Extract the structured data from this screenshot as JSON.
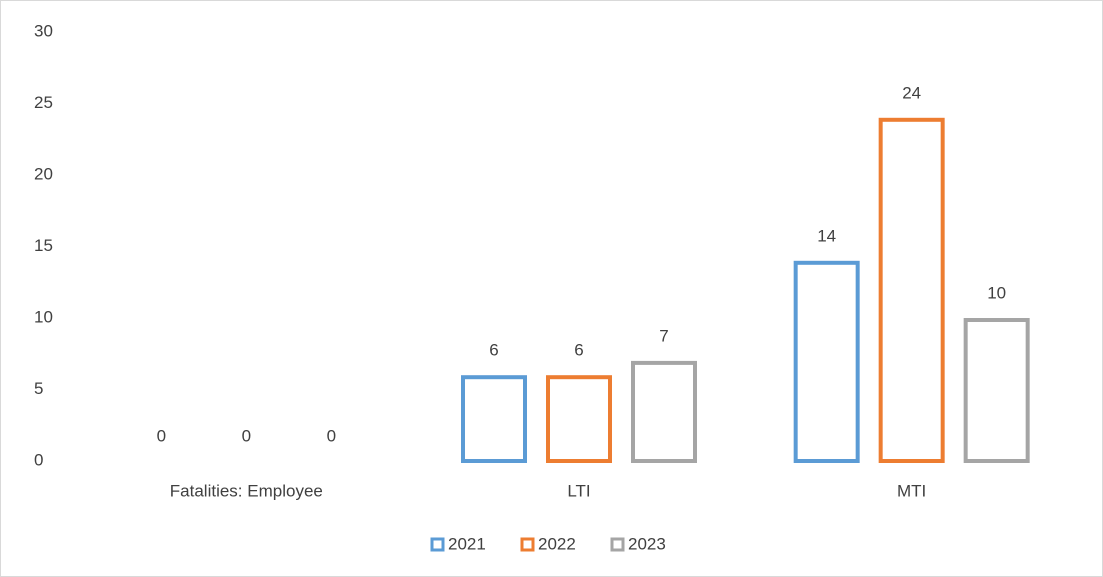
{
  "chart_data": {
    "type": "bar",
    "categories": [
      "Fatalities: Employee",
      "LTI",
      "MTI"
    ],
    "series": [
      {
        "name": "2021",
        "color": "#5b9bd5",
        "values": [
          0,
          6,
          14
        ]
      },
      {
        "name": "2022",
        "color": "#ed7d31",
        "values": [
          0,
          6,
          24
        ]
      },
      {
        "name": "2023",
        "color": "#a5a5a5",
        "values": [
          0,
          7,
          10
        ]
      }
    ],
    "ylim": [
      0,
      30
    ],
    "yticks": [
      0,
      5,
      10,
      15,
      20,
      25,
      30
    ],
    "grid": false,
    "legend": "bottom"
  }
}
